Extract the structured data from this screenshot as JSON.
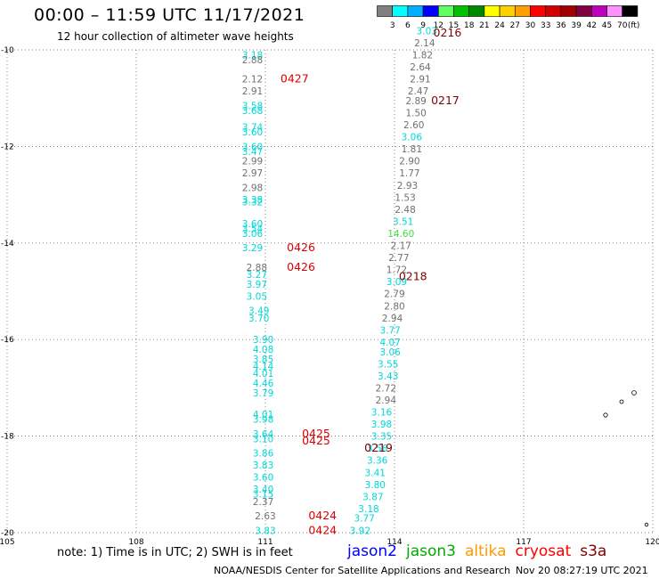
{
  "header": {
    "title": "00:00 – 11:59 UTC 11/17/2021",
    "subtitle": "12 hour collection of altimeter wave heights"
  },
  "colorbar": {
    "unit_label": "(ft)",
    "bins": [
      {
        "color": "#808080",
        "label": "3"
      },
      {
        "color": "#00ffff",
        "label": "6"
      },
      {
        "color": "#00b0ff",
        "label": "9"
      },
      {
        "color": "#0000ff",
        "label": "12"
      },
      {
        "color": "#60ff60",
        "label": "15"
      },
      {
        "color": "#00c000",
        "label": "18"
      },
      {
        "color": "#008800",
        "label": "21"
      },
      {
        "color": "#ffff00",
        "label": "24"
      },
      {
        "color": "#ffd000",
        "label": "27"
      },
      {
        "color": "#ffa000",
        "label": "30"
      },
      {
        "color": "#ff0000",
        "label": "33"
      },
      {
        "color": "#d00000",
        "label": "36"
      },
      {
        "color": "#a00000",
        "label": "39"
      },
      {
        "color": "#800040",
        "label": "42"
      },
      {
        "color": "#c000c0",
        "label": "45"
      },
      {
        "color": "#ff90ff",
        "label": "70"
      },
      {
        "color": "#000000",
        "label": ""
      }
    ]
  },
  "chart_data": {
    "type": "scatter",
    "title": "00:00 – 11:59 UTC 11/17/2021",
    "subtitle": "12 hour collection of altimeter wave heights",
    "xlim": [
      105,
      120
    ],
    "ylim": [
      -20,
      -10
    ],
    "x_ticks": [
      105,
      108,
      111,
      114,
      117,
      120
    ],
    "x_tick_labels": [
      "105",
      "108",
      "111",
      "114",
      "117",
      "120"
    ],
    "y_ticks": [
      -10,
      -12,
      -14,
      -16,
      -18,
      -20
    ],
    "y_tick_labels": [
      "-10",
      "-12",
      "-14",
      "-16",
      "-18",
      "-20"
    ],
    "grid": "dotted",
    "colors": {
      "gray": "#707070",
      "cyan": "#00d8d8",
      "green": "#40e040",
      "red": "#e00000",
      "darkred": "#800000"
    },
    "values": [
      {
        "x": 110.7,
        "y": -10.1,
        "label": "3.18",
        "color": "cyan"
      },
      {
        "x": 110.7,
        "y": -10.2,
        "label": "2.88",
        "color": "gray"
      },
      {
        "x": 110.7,
        "y": -10.6,
        "label": "2.12",
        "color": "gray"
      },
      {
        "x": 110.7,
        "y": -10.85,
        "label": "2.91",
        "color": "gray"
      },
      {
        "x": 110.7,
        "y": -11.15,
        "label": "3.58",
        "color": "cyan"
      },
      {
        "x": 110.7,
        "y": -11.25,
        "label": "3.68",
        "color": "cyan"
      },
      {
        "x": 110.7,
        "y": -11.6,
        "label": "3.74",
        "color": "cyan"
      },
      {
        "x": 110.7,
        "y": -11.7,
        "label": "3.60",
        "color": "cyan"
      },
      {
        "x": 110.7,
        "y": -12.0,
        "label": "3.60",
        "color": "cyan"
      },
      {
        "x": 110.7,
        "y": -12.1,
        "label": "3.47",
        "color": "cyan"
      },
      {
        "x": 110.7,
        "y": -12.3,
        "label": "2.99",
        "color": "gray"
      },
      {
        "x": 110.7,
        "y": -12.55,
        "label": "2.97",
        "color": "gray"
      },
      {
        "x": 110.7,
        "y": -12.85,
        "label": "2.98",
        "color": "gray"
      },
      {
        "x": 110.7,
        "y": -13.1,
        "label": "3.38",
        "color": "cyan"
      },
      {
        "x": 110.7,
        "y": -13.15,
        "label": "3.32",
        "color": "cyan"
      },
      {
        "x": 110.7,
        "y": -13.6,
        "label": "3.60",
        "color": "cyan"
      },
      {
        "x": 110.7,
        "y": -13.7,
        "label": "3.54",
        "color": "cyan"
      },
      {
        "x": 110.7,
        "y": -13.8,
        "label": "3.06",
        "color": "cyan"
      },
      {
        "x": 110.7,
        "y": -14.1,
        "label": "3.29",
        "color": "cyan"
      },
      {
        "x": 110.8,
        "y": -14.5,
        "label": "2.88",
        "color": "gray"
      },
      {
        "x": 110.8,
        "y": -14.65,
        "label": "3.27",
        "color": "cyan"
      },
      {
        "x": 110.8,
        "y": -14.85,
        "label": "3.97",
        "color": "cyan"
      },
      {
        "x": 110.8,
        "y": -15.1,
        "label": "3.05",
        "color": "cyan"
      },
      {
        "x": 110.85,
        "y": -15.4,
        "label": "3.49",
        "color": "cyan"
      },
      {
        "x": 110.85,
        "y": -15.55,
        "label": "3.70",
        "color": "cyan"
      },
      {
        "x": 110.95,
        "y": -16.0,
        "label": "3.90",
        "color": "cyan"
      },
      {
        "x": 110.95,
        "y": -16.2,
        "label": "4.08",
        "color": "cyan"
      },
      {
        "x": 110.95,
        "y": -16.4,
        "label": "3.85",
        "color": "cyan"
      },
      {
        "x": 110.95,
        "y": -16.55,
        "label": "4.14",
        "color": "cyan"
      },
      {
        "x": 110.95,
        "y": -16.7,
        "label": "4.01",
        "color": "cyan"
      },
      {
        "x": 110.95,
        "y": -16.9,
        "label": "4.46",
        "color": "cyan"
      },
      {
        "x": 110.95,
        "y": -17.1,
        "label": "3.79",
        "color": "cyan"
      },
      {
        "x": 110.95,
        "y": -17.55,
        "label": "4.01",
        "color": "cyan"
      },
      {
        "x": 110.95,
        "y": -17.65,
        "label": "3.98",
        "color": "cyan"
      },
      {
        "x": 110.95,
        "y": -17.95,
        "label": "3.64",
        "color": "cyan"
      },
      {
        "x": 110.95,
        "y": -18.05,
        "label": "3.10",
        "color": "cyan"
      },
      {
        "x": 110.95,
        "y": -18.35,
        "label": "3.86",
        "color": "cyan"
      },
      {
        "x": 110.95,
        "y": -18.6,
        "label": "3.83",
        "color": "cyan"
      },
      {
        "x": 110.95,
        "y": -18.85,
        "label": "3.60",
        "color": "cyan"
      },
      {
        "x": 110.95,
        "y": -19.1,
        "label": "3.40",
        "color": "cyan"
      },
      {
        "x": 110.95,
        "y": -19.2,
        "label": "3.15",
        "color": "cyan"
      },
      {
        "x": 110.95,
        "y": -19.35,
        "label": "2.37",
        "color": "gray"
      },
      {
        "x": 111.0,
        "y": -19.65,
        "label": "2.63",
        "color": "gray"
      },
      {
        "x": 111.0,
        "y": -19.95,
        "label": "3.83",
        "color": "cyan"
      },
      {
        "x": 113.2,
        "y": -19.95,
        "label": "3.92",
        "color": "cyan"
      },
      {
        "x": 113.3,
        "y": -19.7,
        "label": "3.77",
        "color": "cyan"
      },
      {
        "x": 113.4,
        "y": -19.5,
        "label": "3.18",
        "color": "cyan"
      },
      {
        "x": 113.5,
        "y": -19.25,
        "label": "3.87",
        "color": "cyan"
      },
      {
        "x": 113.55,
        "y": -19.0,
        "label": "3.80",
        "color": "cyan"
      },
      {
        "x": 113.55,
        "y": -18.75,
        "label": "3.41",
        "color": "cyan"
      },
      {
        "x": 113.6,
        "y": -18.5,
        "label": "3.36",
        "color": "cyan"
      },
      {
        "x": 113.6,
        "y": -18.25,
        "label": "3.56",
        "color": "cyan"
      },
      {
        "x": 113.7,
        "y": -18.0,
        "label": "3.35",
        "color": "cyan"
      },
      {
        "x": 113.7,
        "y": -17.75,
        "label": "3.98",
        "color": "cyan"
      },
      {
        "x": 113.7,
        "y": -17.5,
        "label": "3.16",
        "color": "cyan"
      },
      {
        "x": 113.8,
        "y": -17.25,
        "label": "2.94",
        "color": "gray"
      },
      {
        "x": 113.8,
        "y": -17.0,
        "label": "2.72",
        "color": "gray"
      },
      {
        "x": 113.85,
        "y": -16.75,
        "label": "3.43",
        "color": "cyan"
      },
      {
        "x": 113.85,
        "y": -16.5,
        "label": "3.55",
        "color": "cyan"
      },
      {
        "x": 113.9,
        "y": -16.25,
        "label": "3.06",
        "color": "cyan"
      },
      {
        "x": 113.9,
        "y": -16.05,
        "label": "4.07",
        "color": "cyan"
      },
      {
        "x": 113.9,
        "y": -15.8,
        "label": "3.77",
        "color": "cyan"
      },
      {
        "x": 113.95,
        "y": -15.55,
        "label": "2.94",
        "color": "gray"
      },
      {
        "x": 114.0,
        "y": -15.3,
        "label": "2.80",
        "color": "gray"
      },
      {
        "x": 114.0,
        "y": -15.05,
        "label": "2.79",
        "color": "gray"
      },
      {
        "x": 114.05,
        "y": -14.8,
        "label": "3.09",
        "color": "cyan"
      },
      {
        "x": 114.05,
        "y": -14.55,
        "label": "1.72",
        "color": "gray"
      },
      {
        "x": 114.1,
        "y": -14.3,
        "label": "2.77",
        "color": "gray"
      },
      {
        "x": 114.15,
        "y": -14.05,
        "label": "2.17",
        "color": "gray"
      },
      {
        "x": 114.15,
        "y": -13.8,
        "label": "14.60",
        "color": "green"
      },
      {
        "x": 114.2,
        "y": -13.55,
        "label": "3.51",
        "color": "cyan"
      },
      {
        "x": 114.25,
        "y": -13.3,
        "label": "2.48",
        "color": "gray"
      },
      {
        "x": 114.25,
        "y": -13.05,
        "label": "1.53",
        "color": "gray"
      },
      {
        "x": 114.3,
        "y": -12.8,
        "label": "2.93",
        "color": "gray"
      },
      {
        "x": 114.35,
        "y": -12.55,
        "label": "1.77",
        "color": "gray"
      },
      {
        "x": 114.35,
        "y": -12.3,
        "label": "2.90",
        "color": "gray"
      },
      {
        "x": 114.4,
        "y": -12.05,
        "label": "1.81",
        "color": "gray"
      },
      {
        "x": 114.4,
        "y": -11.8,
        "label": "3.06",
        "color": "cyan"
      },
      {
        "x": 114.45,
        "y": -11.55,
        "label": "2.60",
        "color": "gray"
      },
      {
        "x": 114.5,
        "y": -11.3,
        "label": "1.50",
        "color": "gray"
      },
      {
        "x": 114.5,
        "y": -11.05,
        "label": "2.89",
        "color": "gray"
      },
      {
        "x": 114.55,
        "y": -10.85,
        "label": "2.47",
        "color": "gray"
      },
      {
        "x": 114.6,
        "y": -10.6,
        "label": "2.91",
        "color": "gray"
      },
      {
        "x": 114.6,
        "y": -10.35,
        "label": "2.64",
        "color": "gray"
      },
      {
        "x": 114.65,
        "y": -10.1,
        "label": "1.82",
        "color": "gray"
      },
      {
        "x": 114.7,
        "y": -9.85,
        "label": "2.14",
        "color": "gray"
      },
      {
        "x": 114.75,
        "y": -9.6,
        "label": "3.03",
        "color": "cyan"
      }
    ],
    "annotations": [
      {
        "x": 111.35,
        "y": -10.6,
        "label": "0427",
        "color": "red"
      },
      {
        "x": 111.5,
        "y": -14.1,
        "label": "0426",
        "color": "red"
      },
      {
        "x": 111.5,
        "y": -14.5,
        "label": "0426",
        "color": "red"
      },
      {
        "x": 111.85,
        "y": -17.95,
        "label": "0425",
        "color": "red"
      },
      {
        "x": 111.85,
        "y": -18.1,
        "label": "0425",
        "color": "red"
      },
      {
        "x": 112.0,
        "y": -19.65,
        "label": "0424",
        "color": "red"
      },
      {
        "x": 112.0,
        "y": -19.95,
        "label": "0424",
        "color": "red"
      },
      {
        "x": 114.9,
        "y": -9.65,
        "label": "0216",
        "color": "darkred"
      },
      {
        "x": 114.85,
        "y": -11.05,
        "label": "0217",
        "color": "darkred"
      },
      {
        "x": 114.1,
        "y": -14.7,
        "label": "0218",
        "color": "darkred"
      },
      {
        "x": 113.3,
        "y": -18.25,
        "label": "0219",
        "color": "darkred"
      }
    ]
  },
  "footer": {
    "note": "note: 1) Time is in UTC; 2) SWH is in feet",
    "satellites": [
      {
        "name": "jason2",
        "color": "#0000ff"
      },
      {
        "name": "jason3",
        "color": "#00aa00"
      },
      {
        "name": "altika",
        "color": "#ff9900"
      },
      {
        "name": "cryosat",
        "color": "#ff0000"
      },
      {
        "name": "s3a",
        "color": "#800000"
      }
    ],
    "credit": "NOAA/NESDIS Center for Satellite Applications and Research",
    "timestamp": "Nov 20 08:27:19 UTC 2021"
  }
}
